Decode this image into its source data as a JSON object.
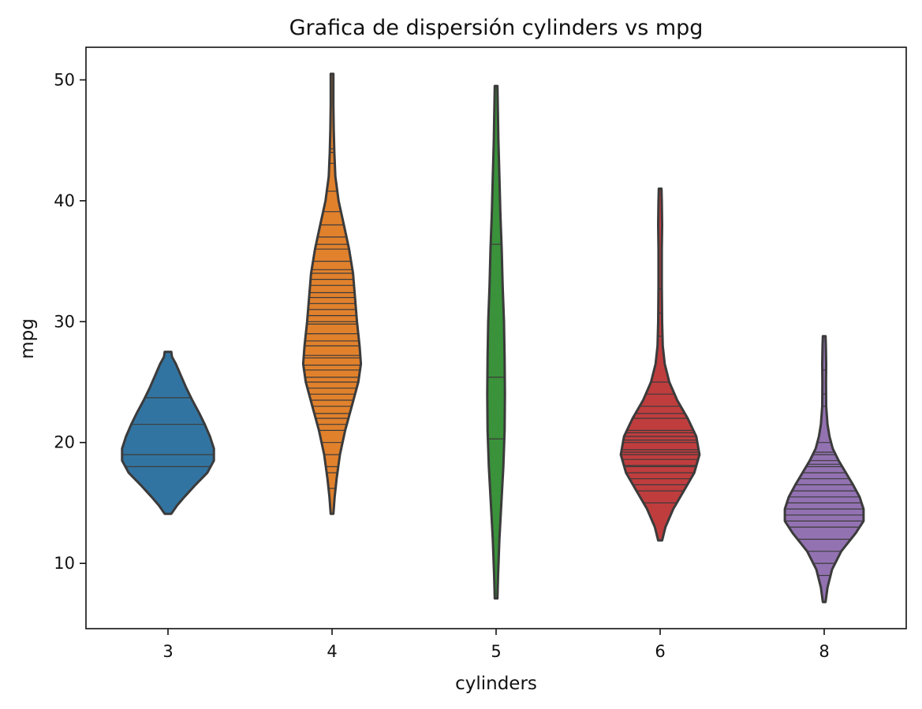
{
  "chart_data": {
    "type": "violin",
    "title": "Grafica de dispersión cylinders vs mpg",
    "xlabel": "cylinders",
    "ylabel": "mpg",
    "categories": [
      "3",
      "4",
      "5",
      "6",
      "8"
    ],
    "ylim": [
      4.6,
      52.7
    ],
    "yticks": [
      10,
      20,
      30,
      40,
      50
    ],
    "grid": false,
    "inner": "stick",
    "violins": [
      {
        "category": "3",
        "color": "#3274a1",
        "min": 14.1,
        "max": 27.5,
        "density": [
          [
            14.1,
            0.05
          ],
          [
            14.8,
            0.14
          ],
          [
            15.5,
            0.25
          ],
          [
            16.5,
            0.42
          ],
          [
            17.5,
            0.6
          ],
          [
            18.5,
            0.7
          ],
          [
            19.5,
            0.7
          ],
          [
            20.5,
            0.64
          ],
          [
            21.5,
            0.56
          ],
          [
            22.5,
            0.47
          ],
          [
            23.5,
            0.37
          ],
          [
            24.5,
            0.28
          ],
          [
            25.5,
            0.2
          ],
          [
            26.5,
            0.12
          ],
          [
            27.1,
            0.06
          ],
          [
            27.5,
            0.05
          ]
        ],
        "observations": [
          18.0,
          19.0,
          21.5,
          23.7
        ]
      },
      {
        "category": "4",
        "color": "#e1812c",
        "min": 14.1,
        "max": 50.5,
        "density": [
          [
            14.1,
            0.02
          ],
          [
            15.5,
            0.04
          ],
          [
            17.0,
            0.07
          ],
          [
            19.0,
            0.12
          ],
          [
            21.0,
            0.2
          ],
          [
            23.0,
            0.3
          ],
          [
            25.0,
            0.4
          ],
          [
            26.5,
            0.44
          ],
          [
            28.0,
            0.42
          ],
          [
            30.0,
            0.38
          ],
          [
            32.0,
            0.35
          ],
          [
            34.0,
            0.32
          ],
          [
            36.0,
            0.26
          ],
          [
            38.0,
            0.18
          ],
          [
            40.0,
            0.1
          ],
          [
            42.0,
            0.05
          ],
          [
            44.0,
            0.035
          ],
          [
            46.0,
            0.025
          ],
          [
            48.0,
            0.02
          ],
          [
            50.5,
            0.02
          ]
        ],
        "observations": [
          16.2,
          17.5,
          18.0,
          19.0,
          20.0,
          21.0,
          21.5,
          22.0,
          22.4,
          23.0,
          23.5,
          24.0,
          24.5,
          25.0,
          25.4,
          26.0,
          26.4,
          27.0,
          27.2,
          28.0,
          28.4,
          29.0,
          29.8,
          30.0,
          30.5,
          31.0,
          31.5,
          32.0,
          32.4,
          33.0,
          33.5,
          34.0,
          34.3,
          35.0,
          36.0,
          36.4,
          37.0,
          38.0,
          39.1,
          40.8,
          43.1,
          44.0,
          44.3
        ]
      },
      {
        "category": "5",
        "color": "#3a923a",
        "min": 7.1,
        "max": 49.5,
        "density": [
          [
            7.1,
            0.02
          ],
          [
            9.0,
            0.03
          ],
          [
            12.0,
            0.05
          ],
          [
            15.0,
            0.08
          ],
          [
            18.0,
            0.11
          ],
          [
            21.0,
            0.13
          ],
          [
            24.0,
            0.135
          ],
          [
            27.0,
            0.13
          ],
          [
            30.0,
            0.12
          ],
          [
            33.0,
            0.1
          ],
          [
            36.0,
            0.085
          ],
          [
            39.0,
            0.065
          ],
          [
            42.0,
            0.05
          ],
          [
            45.0,
            0.035
          ],
          [
            48.0,
            0.025
          ],
          [
            49.5,
            0.02
          ]
        ],
        "observations": [
          20.3,
          25.4,
          36.4
        ]
      },
      {
        "category": "6",
        "color": "#c03d3e",
        "min": 11.9,
        "max": 41.0,
        "density": [
          [
            11.9,
            0.03
          ],
          [
            13.0,
            0.08
          ],
          [
            14.5,
            0.2
          ],
          [
            16.0,
            0.36
          ],
          [
            17.5,
            0.52
          ],
          [
            19.0,
            0.6
          ],
          [
            20.5,
            0.55
          ],
          [
            22.0,
            0.42
          ],
          [
            23.5,
            0.26
          ],
          [
            25.0,
            0.14
          ],
          [
            26.5,
            0.07
          ],
          [
            28.0,
            0.04
          ],
          [
            30.0,
            0.03
          ],
          [
            33.0,
            0.025
          ],
          [
            36.0,
            0.025
          ],
          [
            38.0,
            0.03
          ],
          [
            40.0,
            0.025
          ],
          [
            41.0,
            0.02
          ]
        ],
        "observations": [
          15.0,
          16.0,
          16.5,
          17.0,
          17.5,
          18.0,
          18.1,
          18.6,
          19.0,
          19.2,
          19.4,
          20.0,
          20.2,
          20.5,
          20.8,
          21.0,
          22.0,
          22.4,
          23.0,
          24.0,
          25.0,
          28.8,
          30.7,
          32.7
        ]
      },
      {
        "category": "8",
        "color": "#9372b2",
        "min": 6.8,
        "max": 28.8,
        "density": [
          [
            6.8,
            0.02
          ],
          [
            8.0,
            0.05
          ],
          [
            9.5,
            0.12
          ],
          [
            11.0,
            0.26
          ],
          [
            12.5,
            0.48
          ],
          [
            13.5,
            0.6
          ],
          [
            14.5,
            0.6
          ],
          [
            15.5,
            0.54
          ],
          [
            16.5,
            0.44
          ],
          [
            17.5,
            0.33
          ],
          [
            18.5,
            0.22
          ],
          [
            19.5,
            0.13
          ],
          [
            20.5,
            0.08
          ],
          [
            21.5,
            0.05
          ],
          [
            23.0,
            0.03
          ],
          [
            25.0,
            0.028
          ],
          [
            26.5,
            0.03
          ],
          [
            28.0,
            0.025
          ],
          [
            28.8,
            0.02
          ]
        ],
        "observations": [
          9.0,
          10.0,
          11.0,
          12.0,
          13.0,
          13.5,
          14.0,
          14.5,
          15.0,
          15.5,
          16.0,
          16.5,
          17.0,
          17.5,
          18.0,
          18.2,
          18.5,
          19.0,
          19.2,
          20.0,
          23.0,
          24.0,
          26.0
        ]
      }
    ]
  }
}
